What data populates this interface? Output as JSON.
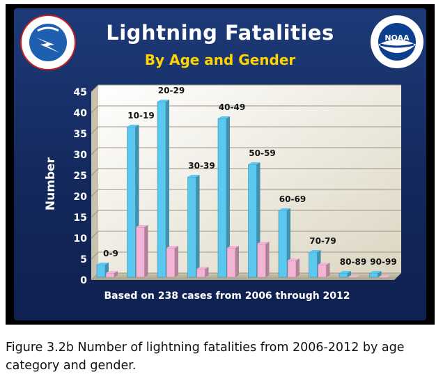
{
  "chart_data": {
    "type": "bar",
    "title": "Lightning Fatalities",
    "subtitle": "By Age and Gender",
    "ylabel": "Number",
    "xlabel": "Based on 238 cases from 2006 through 2012",
    "ylim": [
      0,
      45
    ],
    "yticks": [
      0,
      5,
      10,
      15,
      20,
      25,
      30,
      35,
      40,
      45
    ],
    "categories": [
      "0-9",
      "10-19",
      "20-29",
      "30-39",
      "40-49",
      "50-59",
      "60-69",
      "70-79",
      "80-89",
      "90-99"
    ],
    "series": [
      {
        "values": [
          3,
          36,
          42,
          24,
          38,
          27,
          16,
          6,
          1,
          1
        ],
        "color": "#5bc8f0"
      },
      {
        "values": [
          1,
          12,
          7,
          2,
          7,
          8,
          4,
          3,
          0,
          0
        ],
        "color": "#f3b4d6"
      }
    ],
    "grid": true,
    "legend": "none"
  },
  "logos": {
    "left_text": "NATIONAL WEATHER SERVICE",
    "right_text": "NOAA"
  },
  "caption": "Figure 3.2b  Number of lightning fatalities from 2006-2012 by age category and gender."
}
